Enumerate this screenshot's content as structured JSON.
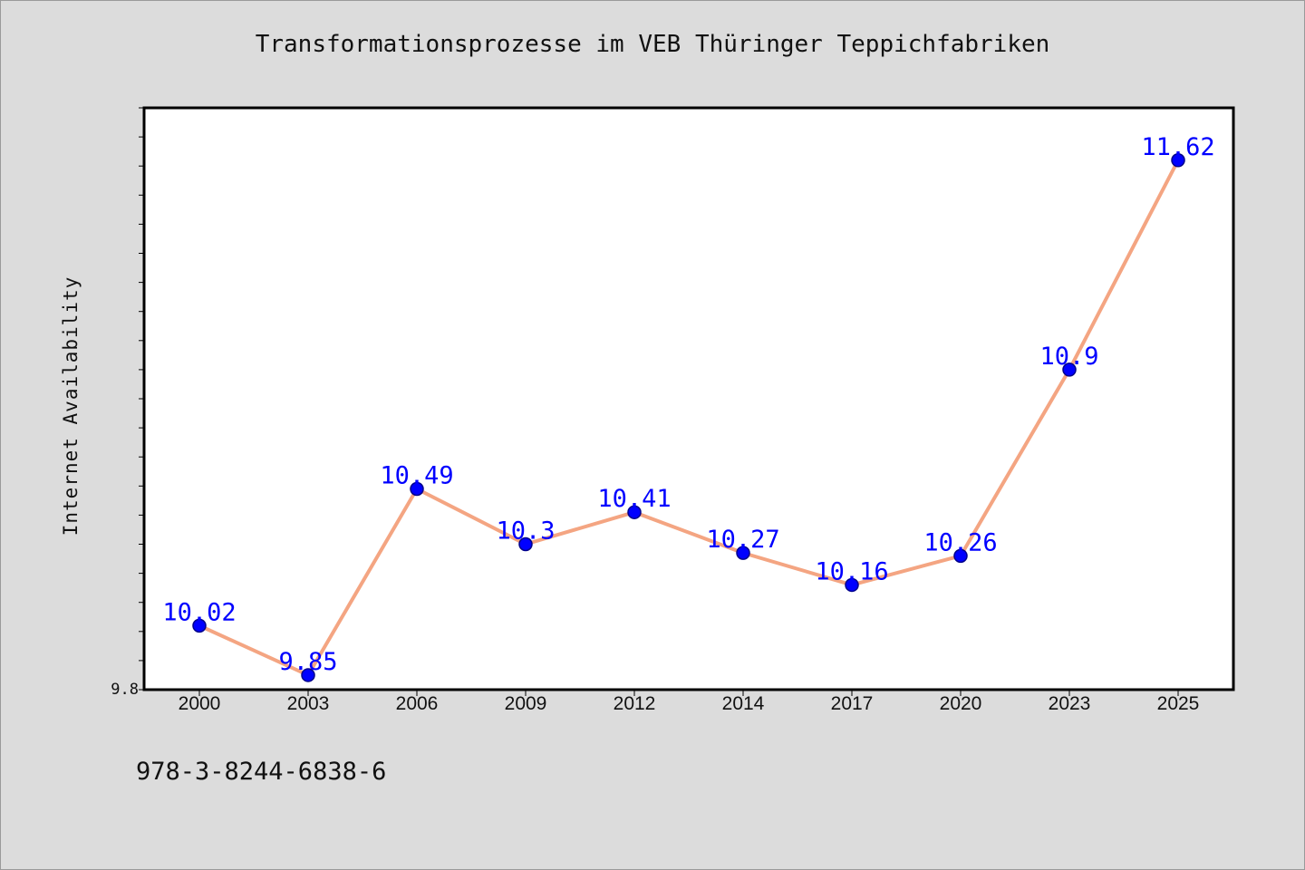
{
  "chart_data": {
    "type": "line",
    "title": "Transformationsprozesse im VEB Thüringer Teppichfabriken",
    "ylabel": "Internet Availability",
    "xlabel": "",
    "categories": [
      "2000",
      "2003",
      "2006",
      "2009",
      "2012",
      "2014",
      "2017",
      "2020",
      "2023",
      "2025"
    ],
    "series": [
      {
        "values": [
          10.02,
          9.85,
          10.49,
          10.3,
          10.41,
          10.27,
          10.16,
          10.26,
          10.9,
          11.62
        ],
        "labels": [
          "10.02",
          "9.85",
          "10.49",
          "10.3",
          "10.41",
          "10.27",
          "10.16",
          "10.26",
          "10.9",
          "11.62"
        ]
      }
    ],
    "ylim": [
      9.8,
      11.8
    ],
    "yticks_labeled": [
      "9.8"
    ],
    "grid": false,
    "colors": {
      "line": "#f4a582",
      "marker": "#0000ff",
      "data_label": "#0000ff",
      "plot_background": "#ffffff",
      "figure_background": "#dcdcdc"
    }
  },
  "footer": {
    "identifier": "978-3-8244-6838-6"
  }
}
